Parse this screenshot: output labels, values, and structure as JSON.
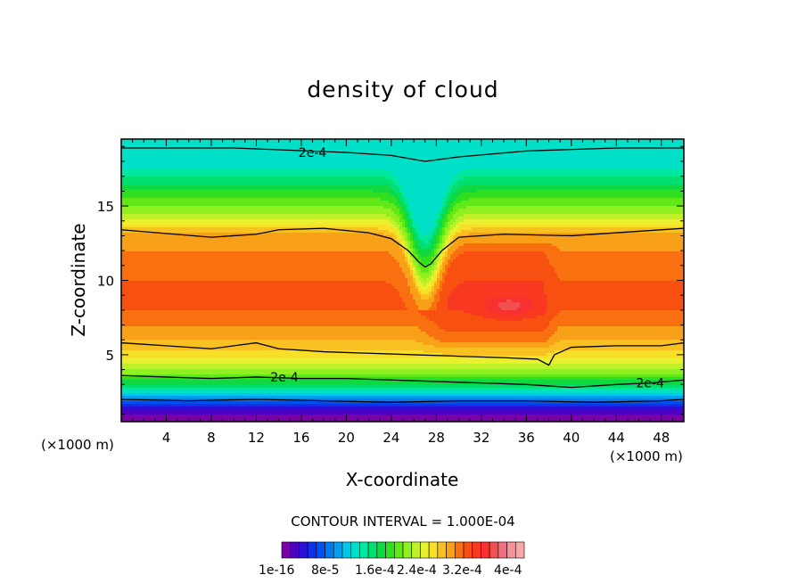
{
  "chart_data": {
    "type": "heatmap",
    "title": "density of cloud",
    "xlabel": "X-coordinate",
    "ylabel": "Z-coordinate",
    "x_unit_left": "(×1000 m)",
    "x_unit_right": "(×1000 m)",
    "xlim": [
      0,
      50
    ],
    "ylim": [
      0.5,
      19.5
    ],
    "x_ticks": [
      4,
      8,
      12,
      16,
      20,
      24,
      28,
      32,
      36,
      40,
      44,
      48
    ],
    "y_ticks": [
      5,
      10,
      15
    ],
    "contour_interval_text": "CONTOUR INTERVAL = 1.000E-04",
    "contour_labels": [
      {
        "text": "2e-4",
        "x": 17.0,
        "z": 18.6
      },
      {
        "text": "2e-4",
        "x": 14.5,
        "z": 3.5
      },
      {
        "text": "2e-4",
        "x": 47.0,
        "z": 3.1
      }
    ],
    "contour_lines": [
      {
        "level": "2e-4",
        "points": [
          [
            0,
            18.9
          ],
          [
            10,
            18.9
          ],
          [
            20,
            18.6
          ],
          [
            24,
            18.4
          ],
          [
            27,
            18.0
          ],
          [
            30,
            18.3
          ],
          [
            36,
            18.7
          ],
          [
            44,
            18.9
          ],
          [
            50,
            18.9
          ]
        ]
      },
      {
        "level": "2e-4",
        "points": [
          [
            0,
            13.4
          ],
          [
            8,
            12.9
          ],
          [
            10,
            13.0
          ],
          [
            12,
            13.1
          ],
          [
            14,
            13.4
          ],
          [
            18,
            13.5
          ],
          [
            22,
            13.2
          ],
          [
            24,
            12.8
          ],
          [
            25.5,
            12.0
          ],
          [
            26.5,
            11.2
          ],
          [
            27,
            10.9
          ],
          [
            27.5,
            11.1
          ],
          [
            28.5,
            12.0
          ],
          [
            30,
            12.9
          ],
          [
            34,
            13.1
          ],
          [
            40,
            13.0
          ],
          [
            46,
            13.3
          ],
          [
            50,
            13.5
          ]
        ]
      },
      {
        "level": "2e-4",
        "points": [
          [
            0,
            5.8
          ],
          [
            4,
            5.6
          ],
          [
            8,
            5.4
          ],
          [
            10,
            5.6
          ],
          [
            12,
            5.8
          ],
          [
            14,
            5.4
          ],
          [
            18,
            5.2
          ],
          [
            22,
            5.1
          ],
          [
            26,
            5.0
          ],
          [
            30,
            4.9
          ],
          [
            34,
            4.8
          ],
          [
            37,
            4.7
          ],
          [
            38,
            4.3
          ],
          [
            38.5,
            5.0
          ],
          [
            40,
            5.5
          ],
          [
            44,
            5.6
          ],
          [
            48,
            5.6
          ],
          [
            50,
            5.8
          ]
        ]
      },
      {
        "level": "2e-4",
        "points": [
          [
            0,
            3.6
          ],
          [
            4,
            3.5
          ],
          [
            8,
            3.4
          ],
          [
            12,
            3.5
          ],
          [
            16,
            3.4
          ],
          [
            20,
            3.4
          ],
          [
            24,
            3.3
          ],
          [
            28,
            3.2
          ],
          [
            32,
            3.1
          ],
          [
            36,
            3.0
          ],
          [
            40,
            2.8
          ],
          [
            44,
            3.0
          ],
          [
            47,
            3.1
          ],
          [
            50,
            3.3
          ]
        ]
      },
      {
        "level": "1e-16",
        "points": [
          [
            0,
            2.0
          ],
          [
            6,
            1.9
          ],
          [
            12,
            2.0
          ],
          [
            18,
            1.9
          ],
          [
            24,
            1.8
          ],
          [
            30,
            1.9
          ],
          [
            36,
            1.9
          ],
          [
            42,
            1.8
          ],
          [
            48,
            1.9
          ],
          [
            50,
            2.0
          ]
        ]
      }
    ],
    "profile_outer": {
      "z": [
        0.5,
        1.0,
        1.5,
        2.0,
        2.5,
        3.0,
        3.5,
        4.0,
        5.0,
        6.0,
        7.0,
        8.0,
        9.0,
        10.0,
        11.0,
        12.0,
        13.0,
        13.5,
        14.5,
        15.5,
        16.5,
        17.5,
        18.5,
        19.5
      ],
      "v": [
        0.0,
        1.0,
        2.5,
        5.5,
        8.5,
        11.0,
        13.0,
        15.0,
        17.5,
        19.0,
        20.0,
        21.0,
        21.0,
        21.0,
        20.5,
        20.0,
        19.5,
        18.0,
        15.0,
        13.0,
        11.0,
        9.0,
        8.0,
        8.0
      ]
    },
    "profile_right": {
      "z": [
        0.5,
        1.0,
        1.5,
        2.0,
        2.5,
        3.0,
        3.5,
        4.0,
        4.5,
        5.0,
        6.0,
        7.0,
        8.0,
        9.0,
        10.0,
        11.0,
        12.0,
        12.5,
        13.0,
        13.5,
        14.5,
        15.5,
        16.5,
        17.5,
        18.5,
        19.5
      ],
      "v": [
        0.0,
        1.0,
        2.5,
        5.5,
        8.5,
        11.0,
        13.0,
        15.0,
        16.5,
        18.0,
        20.5,
        21.5,
        22.0,
        22.0,
        22.0,
        21.5,
        21.0,
        20.0,
        19.5,
        18.0,
        15.0,
        13.0,
        11.0,
        9.0,
        8.0,
        8.0
      ]
    },
    "valley": {
      "x_center": 27,
      "depth": 4.5,
      "width": 1.8
    },
    "inner_max": {
      "x": 34.5,
      "z": 8.3,
      "value": 24
    },
    "colorbar": {
      "colors": [
        "#7a00a8",
        "#4e00c0",
        "#2a10d8",
        "#1030e8",
        "#0050f0",
        "#0078f0",
        "#00a0f0",
        "#00c8e8",
        "#00e0c8",
        "#00e8a0",
        "#00e070",
        "#10d840",
        "#30e020",
        "#60e818",
        "#90f020",
        "#c0f028",
        "#e8f030",
        "#f8e028",
        "#f8c020",
        "#f8a018",
        "#f87010",
        "#f85010",
        "#f83820",
        "#f83030",
        "#f05050",
        "#f07080",
        "#f89098",
        "#f8a8a8"
      ],
      "labels": [
        "1e-16",
        "8e-5",
        "1.6e-4",
        "2.4e-4",
        "3.2e-4",
        "4e-4"
      ]
    }
  }
}
